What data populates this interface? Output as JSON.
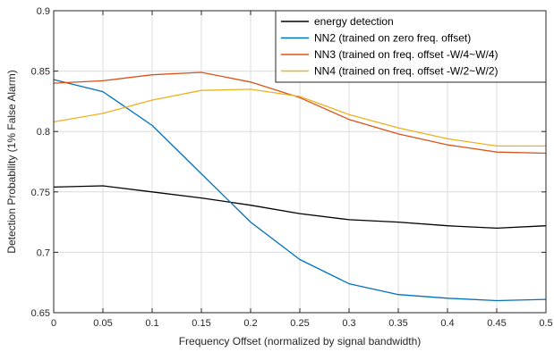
{
  "chart_data": {
    "type": "line",
    "title": "",
    "xlabel": "Frequency Offset (normalized by signal bandwidth)",
    "ylabel": "Detection Probability (1% False Alarm)",
    "xlim": [
      0,
      0.5
    ],
    "ylim": [
      0.65,
      0.9
    ],
    "x_ticks": [
      "0",
      "0.05",
      "0.1",
      "0.15",
      "0.2",
      "0.25",
      "0.3",
      "0.35",
      "0.4",
      "0.45",
      "0.5"
    ],
    "y_ticks": [
      "0.65",
      "0.7",
      "0.75",
      "0.8",
      "0.85",
      "0.9"
    ],
    "grid": true,
    "legend_position": "top-right",
    "x": [
      0,
      0.05,
      0.1,
      0.15,
      0.2,
      0.25,
      0.3,
      0.35,
      0.4,
      0.45,
      0.5
    ],
    "series": [
      {
        "name": "energy detection",
        "color": "#000000",
        "values": [
          0.754,
          0.755,
          0.75,
          0.745,
          0.739,
          0.732,
          0.727,
          0.725,
          0.722,
          0.72,
          0.722
        ]
      },
      {
        "name": "NN2 (trained on zero freq. offset)",
        "color": "#0072BD",
        "values": [
          0.843,
          0.833,
          0.805,
          0.765,
          0.725,
          0.694,
          0.674,
          0.665,
          0.662,
          0.66,
          0.661
        ]
      },
      {
        "name": "NN3 (trained on freq. offset -W/4~W/4)",
        "color": "#D95319",
        "values": [
          0.84,
          0.842,
          0.847,
          0.849,
          0.841,
          0.828,
          0.81,
          0.798,
          0.789,
          0.783,
          0.782
        ]
      },
      {
        "name": "NN4 (trained on freq. offset -W/2~W/2)",
        "color": "#EDB120",
        "values": [
          0.808,
          0.815,
          0.826,
          0.834,
          0.835,
          0.829,
          0.814,
          0.803,
          0.794,
          0.788,
          0.788
        ]
      }
    ]
  }
}
